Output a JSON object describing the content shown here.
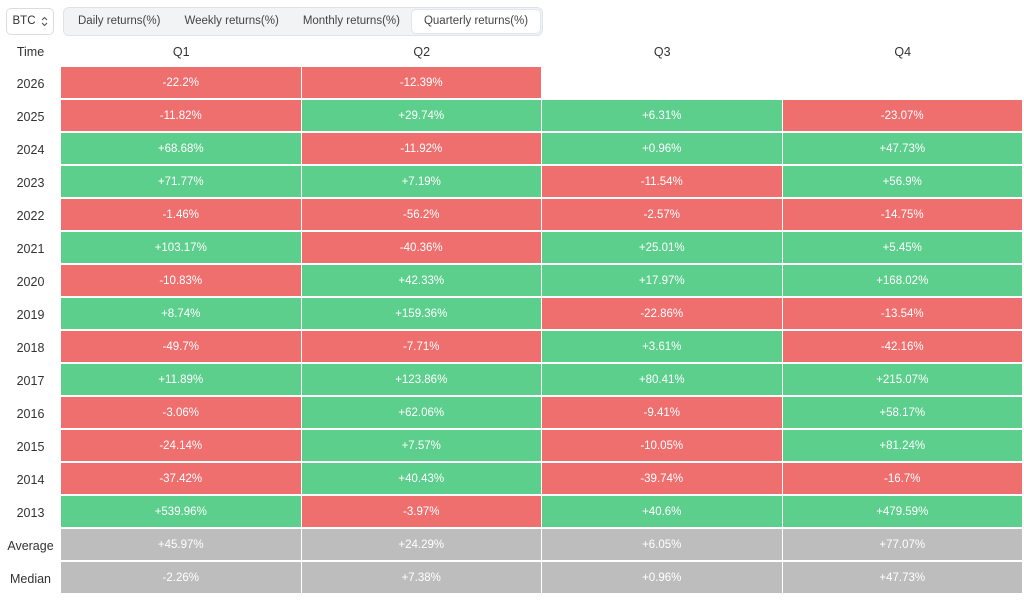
{
  "asset_selector": {
    "label": "BTC",
    "icon": "chevron-updown-icon"
  },
  "tabs": [
    {
      "label": "Daily returns(%)",
      "active": false
    },
    {
      "label": "Weekly returns(%)",
      "active": false
    },
    {
      "label": "Monthly returns(%)",
      "active": false
    },
    {
      "label": "Quarterly returns(%)",
      "active": true
    }
  ],
  "colors": {
    "positive": "#5ccf8d",
    "negative": "#ef6f6f",
    "stat": "#bdbdbd"
  },
  "table": {
    "corner_label": "Time",
    "columns": [
      "Q1",
      "Q2",
      "Q3",
      "Q4"
    ],
    "rows": [
      {
        "label": "2026",
        "values": [
          "-22.2%",
          "-12.39%",
          "",
          ""
        ]
      },
      {
        "label": "2025",
        "values": [
          "-11.82%",
          "+29.74%",
          "+6.31%",
          "-23.07%"
        ]
      },
      {
        "label": "2024",
        "values": [
          "+68.68%",
          "-11.92%",
          "+0.96%",
          "+47.73%"
        ]
      },
      {
        "label": "2023",
        "values": [
          "+71.77%",
          "+7.19%",
          "-11.54%",
          "+56.9%"
        ]
      },
      {
        "label": "2022",
        "values": [
          "-1.46%",
          "-56.2%",
          "-2.57%",
          "-14.75%"
        ]
      },
      {
        "label": "2021",
        "values": [
          "+103.17%",
          "-40.36%",
          "+25.01%",
          "+5.45%"
        ]
      },
      {
        "label": "2020",
        "values": [
          "-10.83%",
          "+42.33%",
          "+17.97%",
          "+168.02%"
        ]
      },
      {
        "label": "2019",
        "values": [
          "+8.74%",
          "+159.36%",
          "-22.86%",
          "-13.54%"
        ]
      },
      {
        "label": "2018",
        "values": [
          "-49.7%",
          "-7.71%",
          "+3.61%",
          "-42.16%"
        ]
      },
      {
        "label": "2017",
        "values": [
          "+11.89%",
          "+123.86%",
          "+80.41%",
          "+215.07%"
        ]
      },
      {
        "label": "2016",
        "values": [
          "-3.06%",
          "+62.06%",
          "-9.41%",
          "+58.17%"
        ]
      },
      {
        "label": "2015",
        "values": [
          "-24.14%",
          "+7.57%",
          "-10.05%",
          "+81.24%"
        ]
      },
      {
        "label": "2014",
        "values": [
          "-37.42%",
          "+40.43%",
          "-39.74%",
          "-16.7%"
        ]
      },
      {
        "label": "2013",
        "values": [
          "+539.96%",
          "-3.97%",
          "+40.6%",
          "+479.59%"
        ]
      }
    ],
    "summary_rows": [
      {
        "label": "Average",
        "values": [
          "+45.97%",
          "+24.29%",
          "+6.05%",
          "+77.07%"
        ]
      },
      {
        "label": "Median",
        "values": [
          "-2.26%",
          "+7.38%",
          "+0.96%",
          "+47.73%"
        ]
      }
    ]
  }
}
